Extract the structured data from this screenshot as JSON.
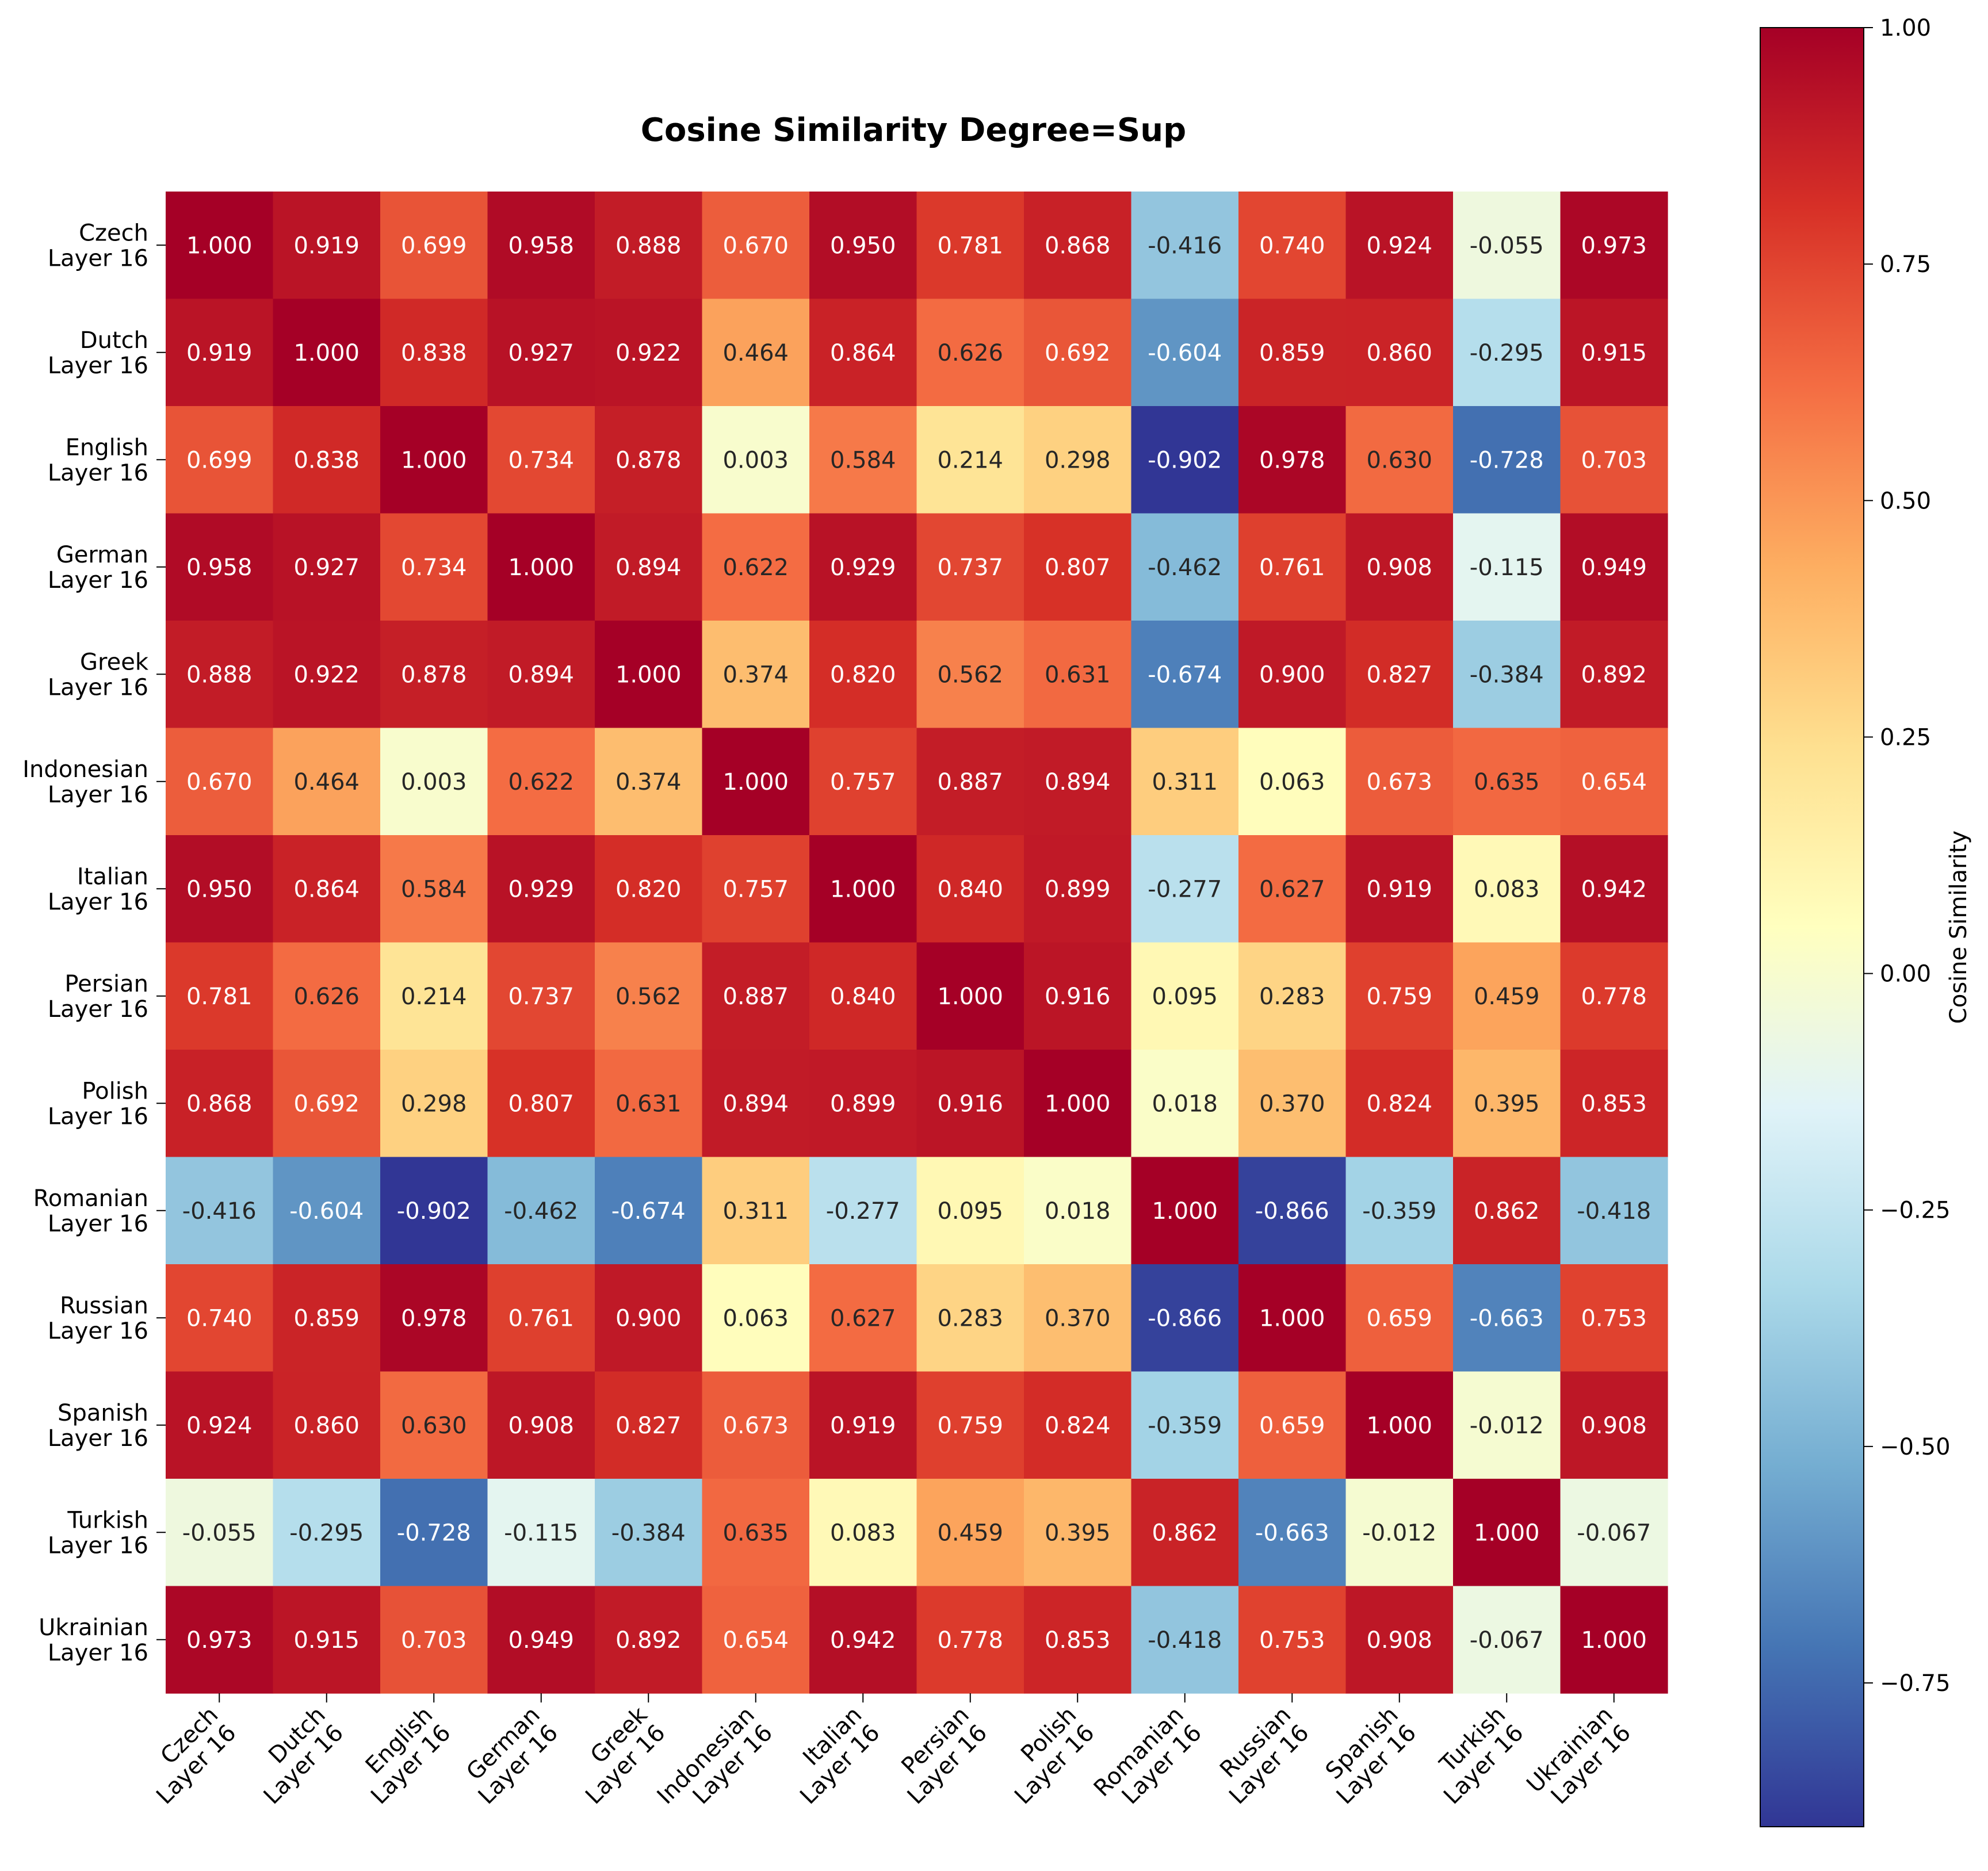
{
  "chart_data": {
    "type": "heatmap",
    "title": "Cosine Similarity Degree=Sup",
    "row_labels": [
      [
        "Czech",
        "Layer 16"
      ],
      [
        "Dutch",
        "Layer 16"
      ],
      [
        "English",
        "Layer 16"
      ],
      [
        "German",
        "Layer 16"
      ],
      [
        "Greek",
        "Layer 16"
      ],
      [
        "Indonesian",
        "Layer 16"
      ],
      [
        "Italian",
        "Layer 16"
      ],
      [
        "Persian",
        "Layer 16"
      ],
      [
        "Polish",
        "Layer 16"
      ],
      [
        "Romanian",
        "Layer 16"
      ],
      [
        "Russian",
        "Layer 16"
      ],
      [
        "Spanish",
        "Layer 16"
      ],
      [
        "Turkish",
        "Layer 16"
      ],
      [
        "Ukrainian",
        "Layer 16"
      ]
    ],
    "col_labels": [
      [
        "Czech",
        "Layer 16"
      ],
      [
        "Dutch",
        "Layer 16"
      ],
      [
        "English",
        "Layer 16"
      ],
      [
        "German",
        "Layer 16"
      ],
      [
        "Greek",
        "Layer 16"
      ],
      [
        "Indonesian",
        "Layer 16"
      ],
      [
        "Italian",
        "Layer 16"
      ],
      [
        "Persian",
        "Layer 16"
      ],
      [
        "Polish",
        "Layer 16"
      ],
      [
        "Romanian",
        "Layer 16"
      ],
      [
        "Russian",
        "Layer 16"
      ],
      [
        "Spanish",
        "Layer 16"
      ],
      [
        "Turkish",
        "Layer 16"
      ],
      [
        "Ukrainian",
        "Layer 16"
      ]
    ],
    "values": [
      [
        1.0,
        0.919,
        0.699,
        0.958,
        0.888,
        0.67,
        0.95,
        0.781,
        0.868,
        -0.416,
        0.74,
        0.924,
        -0.055,
        0.973
      ],
      [
        0.919,
        1.0,
        0.838,
        0.927,
        0.922,
        0.464,
        0.864,
        0.626,
        0.692,
        -0.604,
        0.859,
        0.86,
        -0.295,
        0.915
      ],
      [
        0.699,
        0.838,
        1.0,
        0.734,
        0.878,
        0.003,
        0.584,
        0.214,
        0.298,
        -0.902,
        0.978,
        0.63,
        -0.728,
        0.703
      ],
      [
        0.958,
        0.927,
        0.734,
        1.0,
        0.894,
        0.622,
        0.929,
        0.737,
        0.807,
        -0.462,
        0.761,
        0.908,
        -0.115,
        0.949
      ],
      [
        0.888,
        0.922,
        0.878,
        0.894,
        1.0,
        0.374,
        0.82,
        0.562,
        0.631,
        -0.674,
        0.9,
        0.827,
        -0.384,
        0.892
      ],
      [
        0.67,
        0.464,
        0.003,
        0.622,
        0.374,
        1.0,
        0.757,
        0.887,
        0.894,
        0.311,
        0.063,
        0.673,
        0.635,
        0.654
      ],
      [
        0.95,
        0.864,
        0.584,
        0.929,
        0.82,
        0.757,
        1.0,
        0.84,
        0.899,
        -0.277,
        0.627,
        0.919,
        0.083,
        0.942
      ],
      [
        0.781,
        0.626,
        0.214,
        0.737,
        0.562,
        0.887,
        0.84,
        1.0,
        0.916,
        0.095,
        0.283,
        0.759,
        0.459,
        0.778
      ],
      [
        0.868,
        0.692,
        0.298,
        0.807,
        0.631,
        0.894,
        0.899,
        0.916,
        1.0,
        0.018,
        0.37,
        0.824,
        0.395,
        0.853
      ],
      [
        -0.416,
        -0.604,
        -0.902,
        -0.462,
        -0.674,
        0.311,
        -0.277,
        0.095,
        0.018,
        1.0,
        -0.866,
        -0.359,
        0.862,
        -0.418
      ],
      [
        0.74,
        0.859,
        0.978,
        0.761,
        0.9,
        0.063,
        0.627,
        0.283,
        0.37,
        -0.866,
        1.0,
        0.659,
        -0.663,
        0.753
      ],
      [
        0.924,
        0.86,
        0.63,
        0.908,
        0.827,
        0.673,
        0.919,
        0.759,
        0.824,
        -0.359,
        0.659,
        1.0,
        -0.012,
        0.908
      ],
      [
        -0.055,
        -0.295,
        -0.728,
        -0.115,
        -0.384,
        0.635,
        0.083,
        0.459,
        0.395,
        0.862,
        -0.663,
        -0.012,
        1.0,
        -0.067
      ],
      [
        0.973,
        0.915,
        0.703,
        0.949,
        0.892,
        0.654,
        0.942,
        0.778,
        0.853,
        -0.418,
        0.753,
        0.908,
        -0.067,
        1.0
      ]
    ],
    "colormap": "RdYlBu_r",
    "colorbar": {
      "label": "Cosine Similarity",
      "min": -0.902,
      "max": 1.0,
      "ticks": [
        1.0,
        0.75,
        0.5,
        0.25,
        0.0,
        -0.25,
        -0.5,
        -0.75
      ],
      "tick_labels": [
        "1.00",
        "0.75",
        "0.50",
        "0.25",
        "0.00",
        "−0.25",
        "−0.50",
        "−0.75"
      ]
    },
    "annotation_format": "3 decimals"
  }
}
